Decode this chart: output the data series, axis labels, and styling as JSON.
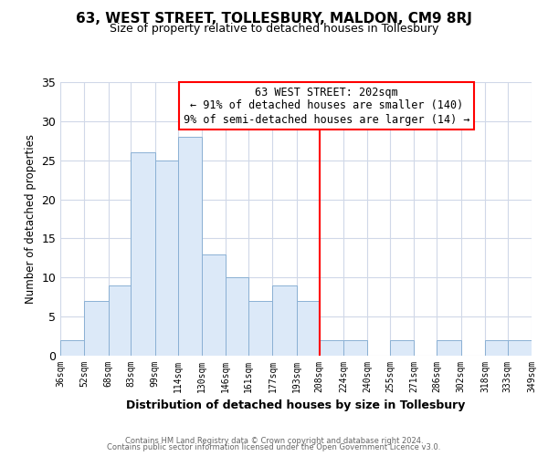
{
  "title": "63, WEST STREET, TOLLESBURY, MALDON, CM9 8RJ",
  "subtitle": "Size of property relative to detached houses in Tollesbury",
  "xlabel": "Distribution of detached houses by size in Tollesbury",
  "ylabel": "Number of detached properties",
  "bin_labels": [
    "36sqm",
    "52sqm",
    "68sqm",
    "83sqm",
    "99sqm",
    "114sqm",
    "130sqm",
    "146sqm",
    "161sqm",
    "177sqm",
    "193sqm",
    "208sqm",
    "224sqm",
    "240sqm",
    "255sqm",
    "271sqm",
    "286sqm",
    "302sqm",
    "318sqm",
    "333sqm",
    "349sqm"
  ],
  "bar_values": [
    2,
    7,
    9,
    26,
    25,
    28,
    13,
    10,
    7,
    9,
    7,
    2,
    2,
    0,
    2,
    0,
    2,
    0,
    2,
    0,
    2
  ],
  "bar_color": "#dce9f8",
  "bar_edge_color": "#8ab0d4",
  "grid_color": "#d0d8e8",
  "bin_edges": [
    36,
    52,
    68,
    83,
    99,
    114,
    130,
    146,
    161,
    177,
    193,
    208,
    224,
    240,
    255,
    271,
    286,
    302,
    318,
    333,
    349
  ],
  "annotation_title": "63 WEST STREET: 202sqm",
  "annotation_line1": "← 91% of detached houses are smaller (140)",
  "annotation_line2": "9% of semi-detached houses are larger (14) →",
  "footer1": "Contains HM Land Registry data © Crown copyright and database right 2024.",
  "footer2": "Contains public sector information licensed under the Open Government Licence v3.0.",
  "red_line_x": 208,
  "ylim": [
    0,
    35
  ],
  "yticks": [
    0,
    5,
    10,
    15,
    20,
    25,
    30,
    35
  ],
  "bg_color": "#ffffff"
}
